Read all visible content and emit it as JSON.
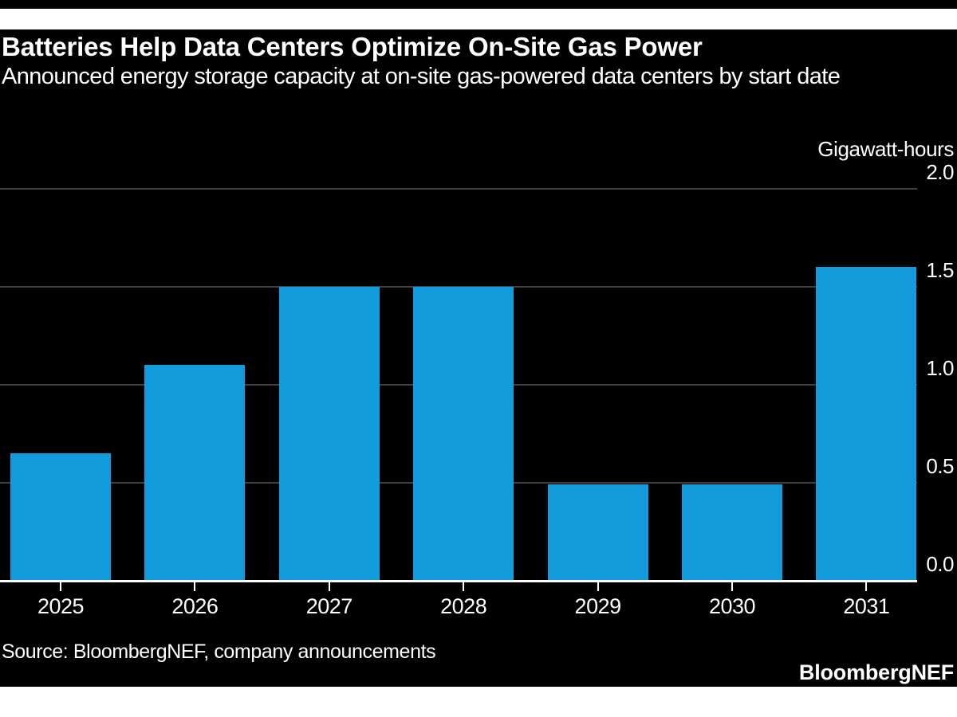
{
  "page": {
    "background": "#ffffff",
    "top_rule_color": "#000000"
  },
  "chart": {
    "title": "Batteries Help Data Centers Optimize On-Site Gas Power",
    "subtitle": "Announced energy storage capacity at on-site gas-powered data centers by start date",
    "unit_label": "Gigawatt-hours",
    "source": "Source: BloombergNEF, company announcements",
    "brand": "BloombergNEF",
    "colors": {
      "panel_background": "#000000",
      "bar": "#129cdb",
      "gridline": "#414141",
      "axis": "#ffffff",
      "text": "#ffffff"
    }
  },
  "chart_data": {
    "type": "bar",
    "title": "Batteries Help Data Centers Optimize On-Site Gas Power",
    "subtitle": "Announced energy storage capacity at on-site gas-powered data centers by start date",
    "categories": [
      "2025",
      "2026",
      "2027",
      "2028",
      "2029",
      "2030",
      "2031"
    ],
    "values": [
      0.65,
      1.1,
      1.5,
      1.5,
      0.49,
      0.49,
      1.6
    ],
    "xlabel": "",
    "ylabel": "Gigawatt-hours",
    "ylim": [
      0,
      2.0
    ],
    "yticks": [
      0.0,
      0.5,
      1.0,
      1.5,
      2.0
    ],
    "ytick_format": "one-decimal",
    "yaxis_side": "right",
    "grid": true,
    "legend": false
  }
}
